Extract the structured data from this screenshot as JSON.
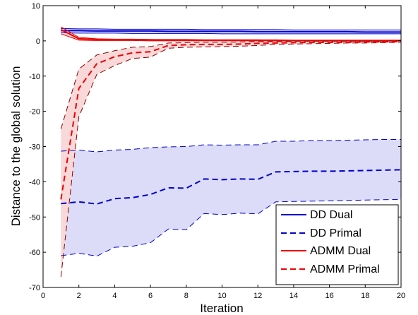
{
  "chart_data": {
    "type": "line",
    "title": "",
    "xlabel": "Iteration",
    "ylabel": "Distance to the global solution",
    "xlim": [
      0,
      20
    ],
    "ylim": [
      -70,
      10
    ],
    "xticks": [
      0,
      2,
      4,
      6,
      8,
      10,
      12,
      14,
      16,
      18,
      20
    ],
    "yticks": [
      10,
      0,
      -10,
      -20,
      -30,
      -40,
      -50,
      -60,
      -70
    ],
    "grid": false,
    "legend_position": "bottom-right",
    "colors": {
      "dd": "#0000cc",
      "dd_fill": "#dcdcf8",
      "admm": "#ee0000",
      "admm_fill": "#f8d8d8"
    },
    "x": [
      1,
      2,
      3,
      4,
      5,
      6,
      7,
      8,
      9,
      10,
      11,
      12,
      13,
      14,
      15,
      16,
      17,
      18,
      19,
      20
    ],
    "series": [
      {
        "name": "DD Dual",
        "method": "dd",
        "role": "dual",
        "style": "solid",
        "upper": [
          3.5,
          3.4,
          3.4,
          3.3,
          3.3,
          3.3,
          3.3,
          3.3,
          3.2,
          3.2,
          3.2,
          3.2,
          3.2,
          3.1,
          3.1,
          3.1,
          3.1,
          3.1,
          3.1,
          3.1
        ],
        "mean": [
          2.9,
          2.9,
          2.8,
          2.8,
          2.8,
          2.8,
          2.7,
          2.7,
          2.7,
          2.7,
          2.7,
          2.6,
          2.6,
          2.6,
          2.6,
          2.6,
          2.6,
          2.5,
          2.5,
          2.5
        ],
        "lower": [
          2.3,
          2.2,
          2.2,
          2.2,
          2.1,
          2.1,
          2.1,
          2.1,
          2.1,
          2.0,
          2.0,
          2.0,
          2.0,
          2.0,
          2.0,
          2.0,
          2.0,
          2.0,
          2.0,
          2.0
        ]
      },
      {
        "name": "DD Primal",
        "method": "dd",
        "role": "primal",
        "style": "dashed",
        "upper": [
          -31.3,
          -31.0,
          -31.5,
          -31.0,
          -30.8,
          -30.3,
          -30.1,
          -30.0,
          -29.5,
          -29.6,
          -29.5,
          -29.5,
          -28.5,
          -28.5,
          -28.3,
          -28.3,
          -28.2,
          -28.1,
          -28.0,
          -28.0
        ],
        "mean": [
          -46.2,
          -45.7,
          -46.3,
          -44.8,
          -44.5,
          -43.6,
          -41.7,
          -41.8,
          -39.2,
          -39.4,
          -39.2,
          -39.3,
          -37.2,
          -37.1,
          -37.0,
          -37.0,
          -36.9,
          -36.8,
          -36.7,
          -36.6
        ],
        "lower": [
          -61.0,
          -60.3,
          -61.1,
          -58.6,
          -58.3,
          -57.3,
          -53.4,
          -53.6,
          -49.0,
          -49.3,
          -48.9,
          -49.1,
          -45.7,
          -45.6,
          -45.5,
          -45.4,
          -45.3,
          -45.2,
          -45.1,
          -45.0
        ]
      },
      {
        "name": "ADMM Dual",
        "method": "admm",
        "role": "dual",
        "style": "solid",
        "upper": [
          4.0,
          1.0,
          0.6,
          0.5,
          0.5,
          0.4,
          0.4,
          0.4,
          0.3,
          0.3,
          0.3,
          0.3,
          0.3,
          0.2,
          0.2,
          0.2,
          0.2,
          0.2,
          0.2,
          0.2
        ],
        "mean": [
          3.2,
          0.6,
          0.4,
          0.3,
          0.3,
          0.3,
          0.2,
          0.2,
          0.2,
          0.2,
          0.2,
          0.2,
          0.1,
          0.1,
          0.1,
          0.1,
          0.1,
          0.1,
          0.1,
          0.1
        ],
        "lower": [
          2.0,
          0.2,
          0.1,
          0.1,
          0.1,
          0.0,
          0.0,
          0.0,
          0.0,
          0.0,
          0.0,
          0.0,
          0.0,
          0.0,
          0.0,
          0.0,
          0.0,
          0.0,
          0.0,
          0.0
        ]
      },
      {
        "name": "ADMM Primal",
        "method": "admm",
        "role": "primal",
        "style": "dashed",
        "upper": [
          -25.0,
          -8.0,
          -4.0,
          -2.8,
          -1.8,
          -1.6,
          -0.6,
          -0.5,
          -0.4,
          -0.4,
          -0.3,
          -0.2,
          -0.2,
          -0.1,
          -0.1,
          -0.1,
          -0.1,
          -0.1,
          -0.1,
          0.0
        ],
        "mean": [
          -45.0,
          -13.5,
          -6.5,
          -4.5,
          -3.4,
          -3.1,
          -1.3,
          -1.1,
          -1.0,
          -1.0,
          -0.9,
          -0.7,
          -0.6,
          -0.5,
          -0.4,
          -0.4,
          -0.4,
          -0.3,
          -0.3,
          -0.2
        ],
        "lower": [
          -67.0,
          -21.5,
          -9.5,
          -7.0,
          -5.0,
          -4.6,
          -2.1,
          -1.8,
          -1.7,
          -1.6,
          -1.5,
          -1.3,
          -1.0,
          -0.9,
          -0.8,
          -0.7,
          -0.6,
          -0.6,
          -0.5,
          -0.4
        ]
      }
    ]
  }
}
